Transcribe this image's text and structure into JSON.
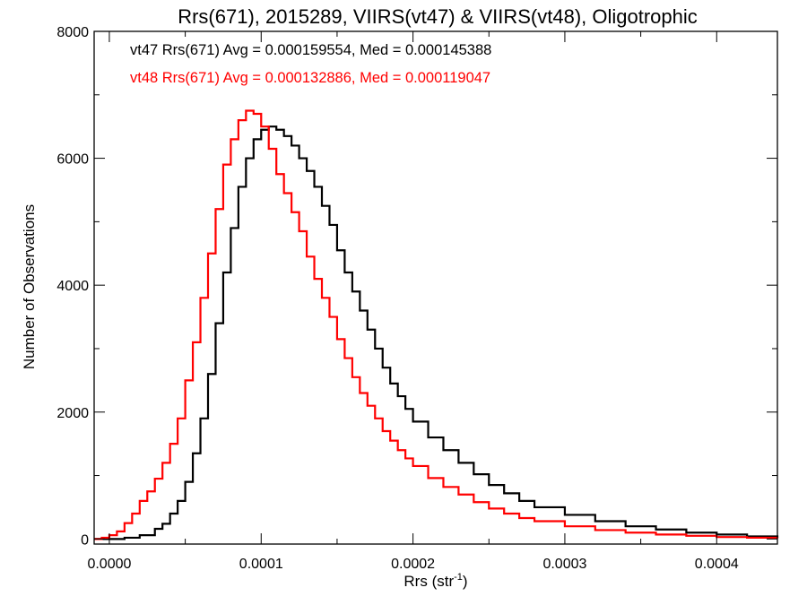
{
  "chart_data": {
    "type": "line",
    "title": "Rrs(671), 2015289, VIIRS(vt47) & VIIRS(vt48), Oligotrophic",
    "xlabel": "Rrs (str",
    "xlabel_sup": "-1",
    "xlabel_close": ")",
    "ylabel": "Number of Observations",
    "xlim": [
      -1e-05,
      0.00044
    ],
    "ylim": [
      -80,
      8000
    ],
    "x_ticks": [
      0.0,
      0.0001,
      0.0002,
      0.0003,
      0.0004
    ],
    "x_tick_labels": [
      "0.0000",
      "0.0001",
      "0.0002",
      "0.0003",
      "0.0004"
    ],
    "y_ticks": [
      0,
      2000,
      4000,
      6000,
      8000
    ],
    "y_tick_labels": [
      "0",
      "2000",
      "4000",
      "6000",
      "8000"
    ],
    "grid": false,
    "legend_position": "top-left",
    "series": [
      {
        "name": "vt47",
        "color": "#000000",
        "legend": "vt47 Rrs(671) Avg = 0.000159554, Med = 0.000145388",
        "x": [
          -1e-05,
          0.0,
          1e-05,
          2e-05,
          3e-05,
          3.5e-05,
          4e-05,
          4.5e-05,
          5e-05,
          5.5e-05,
          6e-05,
          6.5e-05,
          7e-05,
          7.5e-05,
          8e-05,
          8.5e-05,
          9e-05,
          9.5e-05,
          0.0001,
          0.000105,
          0.00011,
          0.000115,
          0.00012,
          0.000125,
          0.00013,
          0.000135,
          0.00014,
          0.000145,
          0.00015,
          0.000155,
          0.00016,
          0.000165,
          0.00017,
          0.000175,
          0.00018,
          0.000185,
          0.00019,
          0.000195,
          0.0002,
          0.00021,
          0.00022,
          0.00023,
          0.00024,
          0.00025,
          0.00026,
          0.00027,
          0.00028,
          0.0003,
          0.00032,
          0.00034,
          0.00036,
          0.00038,
          0.0004,
          0.00042,
          0.00044
        ],
        "y": [
          0,
          0,
          20,
          60,
          160,
          240,
          400,
          600,
          900,
          1350,
          1900,
          2600,
          3400,
          4200,
          4900,
          5550,
          6000,
          6300,
          6450,
          6500,
          6450,
          6350,
          6200,
          6000,
          5800,
          5550,
          5250,
          4950,
          4550,
          4200,
          3900,
          3600,
          3300,
          3000,
          2700,
          2450,
          2250,
          2050,
          1850,
          1600,
          1400,
          1200,
          1020,
          850,
          720,
          600,
          500,
          380,
          280,
          200,
          150,
          100,
          70,
          40,
          20
        ]
      },
      {
        "name": "vt48",
        "color": "#ff0000",
        "legend": "vt48 Rrs(671) Avg = 0.000132886, Med = 0.000119047",
        "x": [
          -1e-05,
          -5e-06,
          0.0,
          5e-06,
          1e-05,
          1.5e-05,
          2e-05,
          2.5e-05,
          3e-05,
          3.5e-05,
          4e-05,
          4.5e-05,
          5e-05,
          5.5e-05,
          6e-05,
          6.5e-05,
          7e-05,
          7.5e-05,
          8e-05,
          8.5e-05,
          9e-05,
          9.5e-05,
          0.0001,
          0.000105,
          0.00011,
          0.000115,
          0.00012,
          0.000125,
          0.00013,
          0.000135,
          0.00014,
          0.000145,
          0.00015,
          0.000155,
          0.00016,
          0.000165,
          0.00017,
          0.000175,
          0.00018,
          0.000185,
          0.00019,
          0.000195,
          0.0002,
          0.00021,
          0.00022,
          0.00023,
          0.00024,
          0.00025,
          0.00026,
          0.00027,
          0.00028,
          0.0003,
          0.00032,
          0.00034,
          0.00036,
          0.00038,
          0.0004,
          0.00042,
          0.00044
        ],
        "y": [
          0,
          20,
          60,
          120,
          250,
          400,
          600,
          750,
          950,
          1200,
          1500,
          1900,
          2500,
          3100,
          3800,
          4500,
          5200,
          5900,
          6300,
          6600,
          6750,
          6700,
          6500,
          6150,
          5750,
          5450,
          5150,
          4850,
          4450,
          4100,
          3800,
          3500,
          3150,
          2850,
          2550,
          2300,
          2100,
          1900,
          1700,
          1550,
          1400,
          1270,
          1150,
          960,
          820,
          700,
          580,
          480,
          400,
          330,
          280,
          200,
          140,
          100,
          70,
          50,
          30,
          20,
          10
        ]
      }
    ]
  }
}
